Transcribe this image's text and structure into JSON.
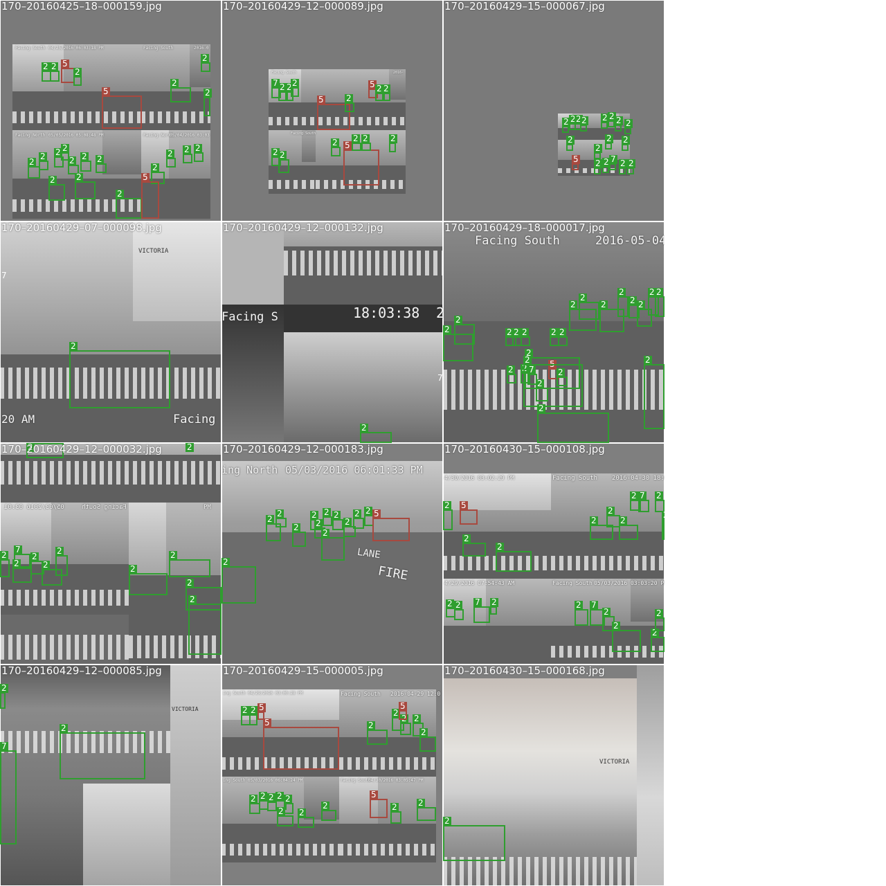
{
  "tiles": [
    {
      "caption": "170–20160425–18–000159.jpg",
      "overlays": [
        "Facing South",
        "04/25/2016 06:03:18 PM",
        "Facing South",
        "2016-0",
        "Facing North",
        "05/05/2016 05:08:48 PM",
        "Facing North",
        "05/04/2016 03:03"
      ],
      "labels": [
        "2",
        "2",
        "5",
        "2",
        "2",
        "5",
        "2",
        "2",
        "2",
        "2",
        "2",
        "2",
        "2",
        "2",
        "2",
        "2",
        "2",
        "2",
        "2",
        "2",
        "5",
        "2",
        "2"
      ]
    },
    {
      "caption": "170–20160429–12–000089.jpg",
      "overlays": [
        "Facing South",
        "2016-",
        "Facing South"
      ],
      "labels": [
        "7",
        "2",
        "2",
        "2",
        "5",
        "2",
        "5",
        "2",
        "2",
        "2",
        "2",
        "5",
        "2",
        "2",
        "2",
        "2"
      ]
    },
    {
      "caption": "170–20160429–15–000067.jpg",
      "overlays": [],
      "labels": [
        "2",
        "2",
        "2",
        "2",
        "2",
        "2",
        "2",
        "2",
        "2",
        "2",
        "2",
        "2",
        "5",
        "2",
        "2",
        "7",
        "2",
        "2"
      ]
    },
    {
      "caption": "170–20160429–07–000098.jpg",
      "overlays": [
        "VICTORIA",
        "20 AM",
        "Facing"
      ],
      "labels": [
        "7",
        "2"
      ]
    },
    {
      "caption": "170–20160429–12–000132.jpg",
      "overlays": [
        "Facing S",
        "18:03:38",
        "2"
      ],
      "labels": [
        "7",
        "2"
      ]
    },
    {
      "caption": "170–20160429–18–000017.jpg",
      "overlays": [
        "Facing South",
        "2016-05-04"
      ],
      "labels": [
        "2",
        "2",
        "2",
        "2",
        "2",
        "2",
        "2",
        "2",
        "2",
        "2",
        "2",
        "2",
        "2",
        "2",
        "2",
        "2",
        "2",
        "5",
        "2",
        "7",
        "2",
        "2",
        "2",
        "2",
        "2"
      ]
    },
    {
      "caption": "170–20160429–12–000032.jpg",
      "overlays": [
        "05/03/2016 03:01",
        "Facing South",
        "PM"
      ],
      "labels": [
        "2",
        "2",
        "7",
        "2",
        "2",
        "2",
        "2",
        "2",
        "2",
        "2",
        "2",
        "2"
      ]
    },
    {
      "caption": "170–20160429–12–000183.jpg",
      "overlays": [
        "ing North",
        "05/03/2016 06:01:33 PM",
        "LANE",
        "FIRE"
      ],
      "labels": [
        "2",
        "2",
        "2",
        "2",
        "2",
        "2",
        "2",
        "2",
        "2",
        "2",
        "2",
        "5",
        "2"
      ]
    },
    {
      "caption": "170–20160430–15–000108.jpg",
      "overlays": [
        "4/30/2016 03:02:29 PM",
        "Facing South",
        "2016-04-30 18:0",
        "4/29/2016 07:54:43 AM",
        "Facing South",
        "05/03/2016 03:03:20 PM"
      ],
      "labels": [
        "2",
        "5",
        "2",
        "2",
        "2",
        "2",
        "2",
        "2",
        "7",
        "2",
        "2",
        "2",
        "2",
        "7",
        "2",
        "2",
        "7",
        "2",
        "2",
        "2",
        "2"
      ]
    },
    {
      "caption": "170–20160429–12–000085.jpg",
      "overlays": [
        "VICTORIA"
      ],
      "labels": [
        "2",
        "2",
        "7"
      ]
    },
    {
      "caption": "170–20160429–15–000005.jpg",
      "overlays": [
        "ing South",
        "04/29/2016 03:00:28 PM",
        "Facing South",
        "2016-04-29 12:0",
        "ing South",
        "05/03/2016 06:04:24 PM",
        "Facing South",
        "04/30/2016 03:05:47 PM"
      ],
      "labels": [
        "2",
        "2",
        "5",
        "5",
        "2",
        "2",
        "2",
        "2",
        "5",
        "2",
        "2",
        "2",
        "2",
        "2",
        "2",
        "2",
        "5",
        "2",
        "2",
        "2",
        "2"
      ]
    },
    {
      "caption": "170–20160430–15–000168.jpg",
      "overlays": [
        "VICTORIA"
      ],
      "labels": [
        "2"
      ]
    }
  ],
  "colors": {
    "box": "#2f9e2f",
    "bus_box": "#a8493f",
    "background": "#7f7f7f"
  }
}
